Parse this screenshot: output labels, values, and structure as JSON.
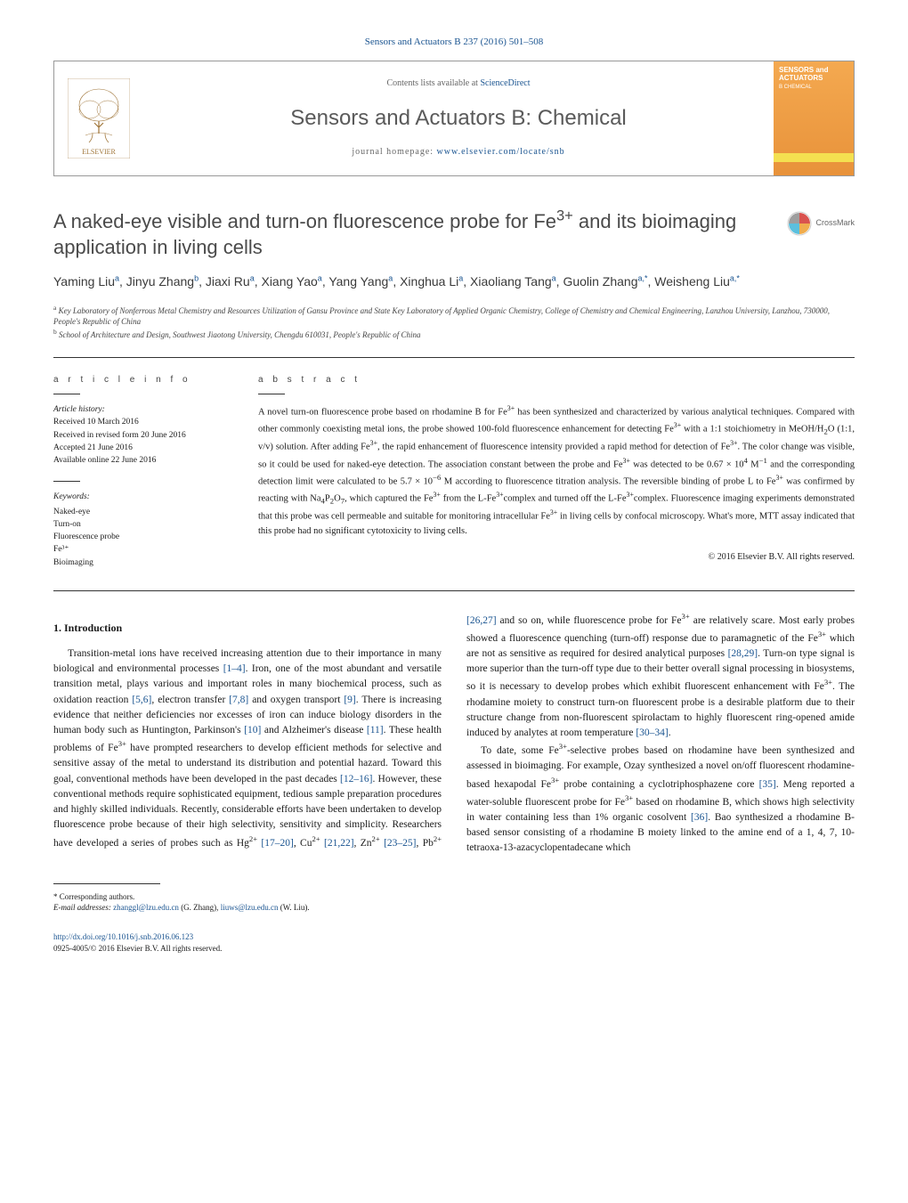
{
  "journal_ref": "Sensors and Actuators B 237 (2016) 501–508",
  "header": {
    "contents_prefix": "Contents lists available at ",
    "contents_link": "ScienceDirect",
    "journal_title": "Sensors and Actuators B: Chemical",
    "homepage_prefix": "journal homepage: ",
    "homepage_link": "www.elsevier.com/locate/snb",
    "cover_label_1": "SENSORS and",
    "cover_label_2": "ACTUATORS"
  },
  "crossmark_label": "CrossMark",
  "title_html": "A naked-eye visible and turn-on fluorescence probe for Fe<sup class='ion'>3+</sup> and its bioimaging application in living cells",
  "authors_html": "Yaming Liu<sup>a</sup>, Jinyu Zhang<sup>b</sup>, Jiaxi Ru<sup>a</sup>, Xiang Yao<sup>a</sup>, Yang Yang<sup>a</sup>, Xinghua Li<sup>a</sup>, Xiaoliang Tang<sup>a</sup>, Guolin Zhang<sup>a,*</sup>, Weisheng Liu<sup>a,*</sup>",
  "affiliations": {
    "a": "Key Laboratory of Nonferrous Metal Chemistry and Resources Utilization of Gansu Province and State Key Laboratory of Applied Organic Chemistry, College of Chemistry and Chemical Engineering, Lanzhou University, Lanzhou, 730000, People's Republic of China",
    "b": "School of Architecture and Design, Southwest Jiaotong University, Chengdu 610031, People's Republic of China"
  },
  "info_labels": {
    "article_info": "a r t i c l e   i n f o",
    "abstract": "a b s t r a c t"
  },
  "history": {
    "heading": "Article history:",
    "received": "Received 10 March 2016",
    "revised": "Received in revised form 20 June 2016",
    "accepted": "Accepted 21 June 2016",
    "online": "Available online 22 June 2016"
  },
  "keywords": {
    "heading": "Keywords:",
    "items": [
      "Naked-eye",
      "Turn-on",
      "Fluorescence probe",
      "Fe³⁺",
      "Bioimaging"
    ]
  },
  "abstract_html": "A novel turn-on fluorescence probe based on rhodamine B for Fe<sup class='ion'>3+</sup> has been synthesized and characterized by various analytical techniques. Compared with other commonly coexisting metal ions, the probe showed 100-fold fluorescence enhancement for detecting Fe<sup class='ion'>3+</sup> with a 1:1 stoichiometry in MeOH/H<sub>2</sub>O (1:1, v/v) solution. After adding Fe<sup class='ion'>3+</sup>, the rapid enhancement of fluorescence intensity provided a rapid method for detection of Fe<sup class='ion'>3+</sup>. The color change was visible, so it could be used for naked-eye detection. The association constant between the probe and Fe<sup class='ion'>3+</sup> was detected to be 0.67 × 10<sup>4</sup> M<sup>−1</sup> and the corresponding detection limit were calculated to be 5.7 × 10<sup>−6</sup> M according to fluorescence titration analysis. The reversible binding of probe L to Fe<sup class='ion'>3+</sup> was confirmed by reacting with Na<sub>4</sub>P<sub>2</sub>O<sub>7</sub>, which captured the Fe<sup class='ion'>3+</sup> from the L-Fe<sup class='ion'>3+</sup>complex and turned off the L-Fe<sup class='ion'>3+</sup>complex. Fluorescence imaging experiments demonstrated that this probe was cell permeable and suitable for monitoring intracellular Fe<sup class='ion'>3+</sup> in living cells by confocal microscopy. What's more, MTT assay indicated that this probe had no significant cytotoxicity to living cells.",
  "abstract_copyright": "© 2016 Elsevier B.V. All rights reserved.",
  "section1": {
    "heading": "1. Introduction"
  },
  "body_html": "<p>Transition-metal ions have received increasing attention due to their importance in many biological and environmental processes <span class='ref'>[1–4]</span>. Iron, one of the most abundant and versatile transition metal, plays various and important roles in many biochemical process, such as oxidation reaction <span class='ref'>[5,6]</span>, electron transfer <span class='ref'>[7,8]</span> and oxygen transport <span class='ref'>[9]</span>. There is increasing evidence that neither deficiencies nor excesses of iron can induce biology disorders in the human body such as Huntington, Parkinson's <span class='ref'>[10]</span> and Alzheimer's disease <span class='ref'>[11]</span>. These health problems of Fe<sup class='ion'>3+</sup> have prompted researchers to develop efficient methods for selective and sensitive assay of the metal to understand its distribution and potential hazard. Toward this goal, conventional methods have been developed in the past decades <span class='ref'>[12–16]</span>. However, these conventional methods require sophisticated equipment, tedious sample preparation procedures and highly skilled individuals. Recently, considerable efforts have been undertaken to develop fluorescence probe because of their high selectivity, sensitivity and simplicity. Researchers have developed a series of probes such as Hg<sup class='ion'>2+</sup> <span class='ref'>[17–20]</span>, Cu<sup class='ion'>2+</sup> <span class='ref'>[21,22]</span>, Zn<sup class='ion'>2+</sup> <span class='ref'>[23–25]</span>, Pb<sup class='ion'>2+</sup> <span class='ref'>[26,27]</span> and so on, while fluorescence probe for Fe<sup class='ion'>3+</sup> are relatively scare. Most early probes showed a fluorescence quenching (turn-off) response due to paramagnetic of the Fe<sup class='ion'>3+</sup> which are not as sensitive as required for desired analytical purposes <span class='ref'>[28,29]</span>. Turn-on type signal is more superior than the turn-off type due to their better overall signal processing in biosystems, so it is necessary to develop probes which exhibit fluorescent enhancement with Fe<sup class='ion'>3+</sup>. The rhodamine moiety to construct turn-on fluorescent probe is a desirable platform due to their structure change from non-fluorescent spirolactam to highly fluorescent ring-opened amide induced by analytes at room temperature <span class='ref'>[30–34]</span>.</p><p>To date, some Fe<sup class='ion'>3+</sup>-selective probes based on rhodamine have been synthesized and assessed in bioimaging. For example, Ozay synthesized a novel on/off fluorescent rhodamine-based hexapodal Fe<sup class='ion'>3+</sup> probe containing a cyclotriphosphazene core <span class='ref'>[35]</span>. Meng reported a water-soluble fluorescent probe for Fe<sup class='ion'>3+</sup> based on rhodamine B, which shows high selectivity in water containing less than 1% organic cosolvent <span class='ref'>[36]</span>. Bao synthesized a rhodamine B-based sensor consisting of a rhodamine B moiety linked to the amine end of a 1, 4, 7, 10-tetraoxa-13-azacyclopentadecane which</p>",
  "footnote": {
    "star": "* Corresponding authors.",
    "email_label": "E-mail addresses:",
    "email1": "zhanggl@lzu.edu.cn",
    "name1": "(G. Zhang),",
    "email2": "liuws@lzu.edu.cn",
    "name2": "(W. Liu)."
  },
  "bottom": {
    "doi": "http://dx.doi.org/10.1016/j.snb.2016.06.123",
    "issn": "0925-4005/© 2016 Elsevier B.V. All rights reserved."
  },
  "colors": {
    "link": "#1a5490",
    "text": "#1a1a1a",
    "grey_title": "#5a5a5a",
    "cover_top": "#f4a950",
    "cover_bottom": "#e8923a"
  }
}
